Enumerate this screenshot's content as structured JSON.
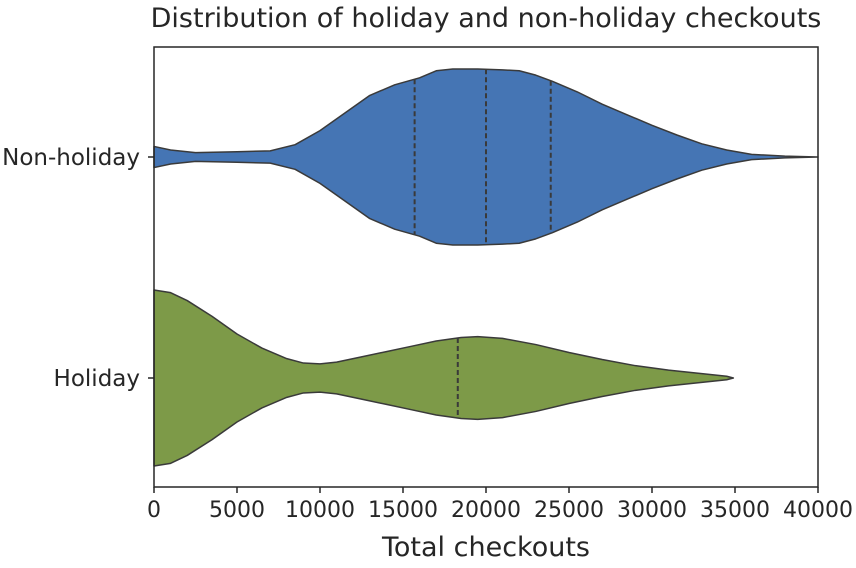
{
  "chart_data": {
    "type": "violin",
    "title": "Distribution of holiday and non-holiday checkouts",
    "xlabel": "Total checkouts",
    "ylabel": "",
    "xlim": [
      0,
      40000
    ],
    "xticks": [
      0,
      5000,
      10000,
      15000,
      20000,
      25000,
      30000,
      35000,
      40000
    ],
    "orientation": "horizontal",
    "grid": false,
    "series": [
      {
        "name": "Non-holiday",
        "color": "#4575b4",
        "quartiles": [
          15700,
          20000,
          23900
        ],
        "density": [
          [
            0,
            0.12
          ],
          [
            1000,
            0.08
          ],
          [
            2500,
            0.05
          ],
          [
            5000,
            0.06
          ],
          [
            7000,
            0.07
          ],
          [
            8500,
            0.14
          ],
          [
            10000,
            0.3
          ],
          [
            11500,
            0.5
          ],
          [
            13000,
            0.7
          ],
          [
            14500,
            0.82
          ],
          [
            16000,
            0.9
          ],
          [
            17000,
            0.98
          ],
          [
            18000,
            1.0
          ],
          [
            19500,
            1.0
          ],
          [
            21000,
            0.99
          ],
          [
            22000,
            0.98
          ],
          [
            23000,
            0.93
          ],
          [
            24000,
            0.86
          ],
          [
            25500,
            0.74
          ],
          [
            27000,
            0.6
          ],
          [
            28500,
            0.48
          ],
          [
            30000,
            0.36
          ],
          [
            31500,
            0.25
          ],
          [
            33000,
            0.15
          ],
          [
            34500,
            0.08
          ],
          [
            36000,
            0.03
          ],
          [
            38000,
            0.01
          ],
          [
            40000,
            0.0
          ]
        ]
      },
      {
        "name": "Holiday",
        "color": "#7d9a48",
        "quartiles": [
          18300
        ],
        "density": [
          [
            0,
            1.0
          ],
          [
            1000,
            0.97
          ],
          [
            2000,
            0.88
          ],
          [
            3500,
            0.7
          ],
          [
            5000,
            0.5
          ],
          [
            6500,
            0.34
          ],
          [
            8000,
            0.22
          ],
          [
            9000,
            0.17
          ],
          [
            10000,
            0.16
          ],
          [
            11000,
            0.18
          ],
          [
            12500,
            0.24
          ],
          [
            14000,
            0.3
          ],
          [
            15500,
            0.36
          ],
          [
            17000,
            0.42
          ],
          [
            18500,
            0.46
          ],
          [
            19500,
            0.47
          ],
          [
            21000,
            0.45
          ],
          [
            23000,
            0.38
          ],
          [
            25000,
            0.29
          ],
          [
            27000,
            0.21
          ],
          [
            29000,
            0.14
          ],
          [
            31000,
            0.09
          ],
          [
            33000,
            0.05
          ],
          [
            34500,
            0.02
          ],
          [
            34900,
            0.0
          ]
        ]
      }
    ]
  }
}
